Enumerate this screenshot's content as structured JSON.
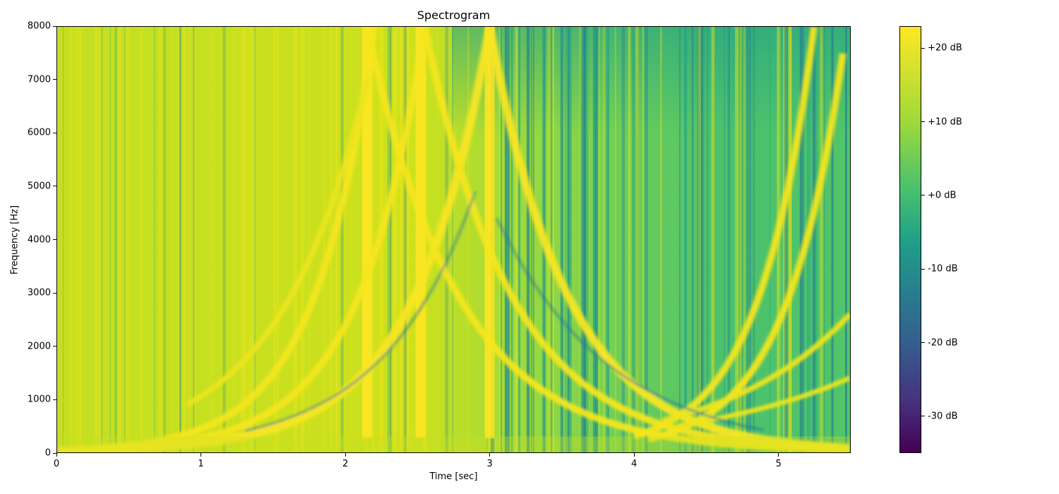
{
  "chart_data": {
    "type": "heatmap",
    "title": "Spectrogram",
    "xlabel": "Time [sec]",
    "ylabel": "Frequency [Hz]",
    "xlim": [
      0,
      5.5
    ],
    "ylim": [
      0,
      8000
    ],
    "x_ticks": [
      "0",
      "1",
      "2",
      "3",
      "4",
      "5"
    ],
    "y_ticks": [
      "0",
      "1000",
      "2000",
      "3000",
      "4000",
      "5000",
      "6000",
      "7000",
      "8000"
    ],
    "colormap": "viridis",
    "colorbar": {
      "range_db": [
        -35,
        23
      ],
      "ticks": [
        "+20 dB",
        "+10 dB",
        "+0 dB",
        "-10 dB",
        "-20 dB",
        "-30 dB"
      ]
    },
    "features": {
      "bright_vertical_bursts_sec": [
        2.15,
        2.52,
        3.0
      ],
      "chirp_sweeps": "exponential rising and falling frequency sweeps crossing near 4.2 sec at about 650 Hz"
    }
  }
}
